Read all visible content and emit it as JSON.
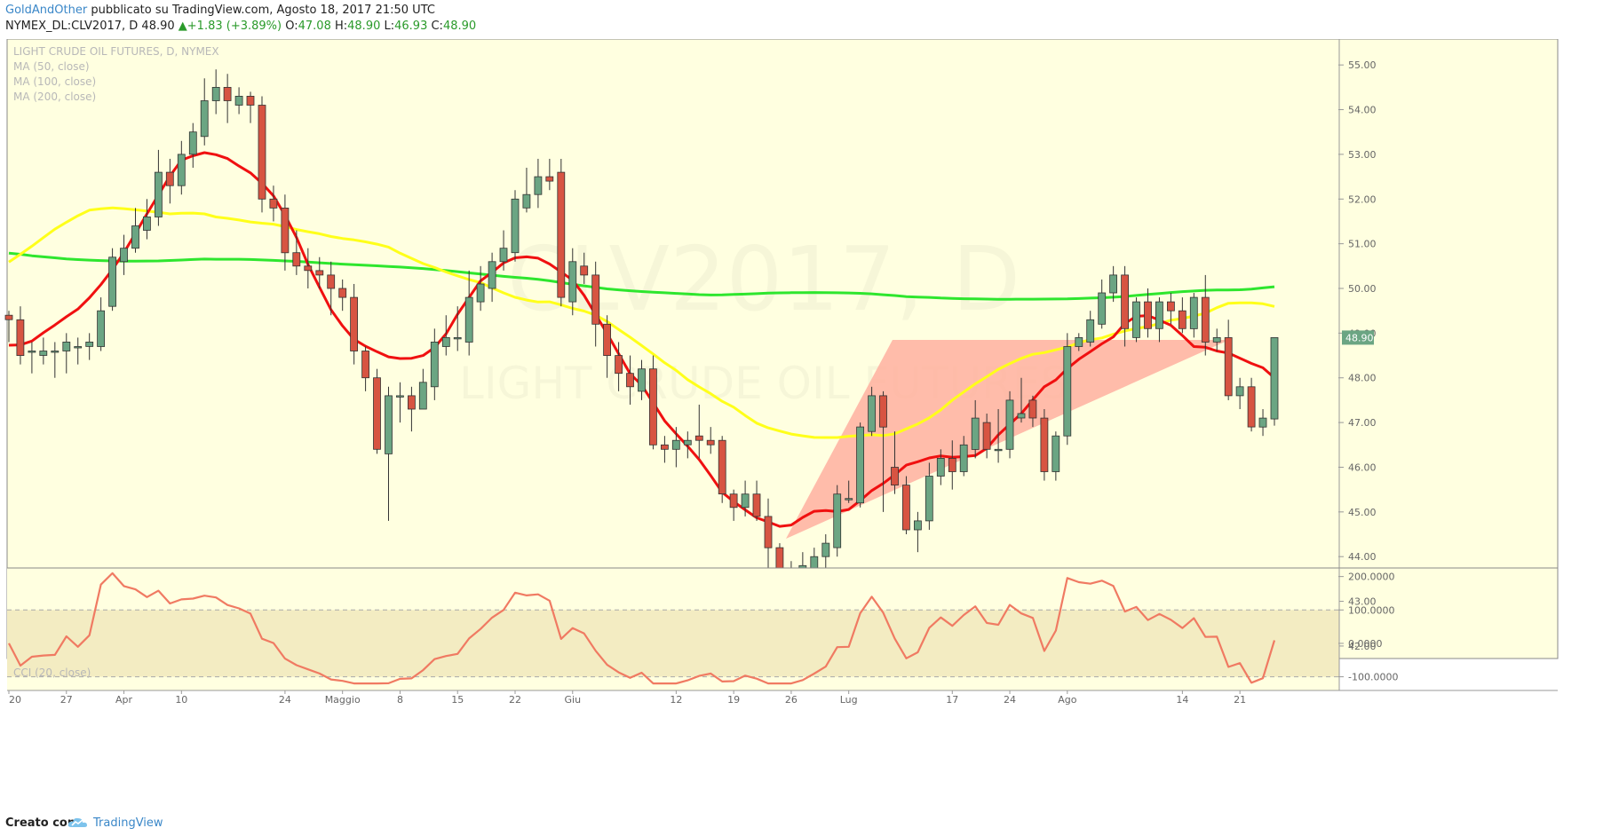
{
  "header": {
    "author": "GoldAndOther",
    "published": "pubblicato su TradingView.com, Agosto 18, 2017 21:50 UTC",
    "symbol": "NYMEX_DL:CLV2017, D",
    "last": "48.90",
    "change_arrow": "▲",
    "change": "+1.83 (+3.89%)",
    "o_label": "O:",
    "o": "47.08",
    "h_label": "H:",
    "h": "48.90",
    "l_label": "L:",
    "l": "46.93",
    "c_label": "C:",
    "c": "48.90"
  },
  "legend": {
    "title": "LIGHT CRUDE OIL FUTURES, D, NYMEX",
    "ma50": "MA (50, close)",
    "ma100": "MA (100, close)",
    "ma200": "MA (200, close)",
    "cci": "CCI (20, close)"
  },
  "watermark": {
    "line1": "CLV2017, D",
    "line2": "LIGHT CRUDE OIL FUTURES"
  },
  "footer": {
    "made_with": "Creato con",
    "brand": "TradingView"
  },
  "colors": {
    "plot_bg": "#ffffe0",
    "up": "#6ba583",
    "down": "#d75442",
    "ma50": "#f01010",
    "ma100": "#ffff1a",
    "ma200": "#2ee62e",
    "cci": "#f07a62",
    "triangle": "#ffb0a0",
    "cci_band": "#f3ecc2"
  },
  "chart_data": [
    {
      "type": "candlestick",
      "title": "LIGHT CRUDE OIL FUTURES, D, NYMEX",
      "x_tick_labels": [
        "20",
        "27",
        "Apr",
        "10",
        "24",
        "Maggio",
        "8",
        "15",
        "22",
        "Giu",
        "12",
        "19",
        "26",
        "Lug",
        "17",
        "24",
        "Ago",
        "14",
        "21"
      ],
      "y_tick_labels": [
        "42.00",
        "43.00",
        "44.00",
        "45.00",
        "46.00",
        "47.00",
        "48.00",
        "49.00",
        "50.00",
        "51.00",
        "52.00",
        "53.00",
        "54.00",
        "55.00"
      ],
      "ylim": [
        41.8,
        55.5
      ],
      "last_price_label": "48.90",
      "candles": [
        [
          49.4,
          49.3,
          49.5,
          48.8
        ],
        [
          49.3,
          48.5,
          49.6,
          48.3
        ],
        [
          48.6,
          48.6,
          48.8,
          48.1
        ],
        [
          48.5,
          48.6,
          48.9,
          48.3
        ],
        [
          48.6,
          48.6,
          48.8,
          48.0
        ],
        [
          48.6,
          48.8,
          49.0,
          48.1
        ],
        [
          48.7,
          48.7,
          48.9,
          48.3
        ],
        [
          48.7,
          48.8,
          49.0,
          48.4
        ],
        [
          48.7,
          49.5,
          49.8,
          48.6
        ],
        [
          49.6,
          50.7,
          50.9,
          49.5
        ],
        [
          50.6,
          50.9,
          51.2,
          50.3
        ],
        [
          50.9,
          51.4,
          51.8,
          50.8
        ],
        [
          51.3,
          51.6,
          52.0,
          51.1
        ],
        [
          51.6,
          52.6,
          53.1,
          51.4
        ],
        [
          52.6,
          52.3,
          52.9,
          51.9
        ],
        [
          52.3,
          53.0,
          53.3,
          52.1
        ],
        [
          53.0,
          53.5,
          53.7,
          52.7
        ],
        [
          53.4,
          54.2,
          54.7,
          53.2
        ],
        [
          54.2,
          54.5,
          54.9,
          53.9
        ],
        [
          54.5,
          54.2,
          54.8,
          53.7
        ],
        [
          54.1,
          54.3,
          54.5,
          53.9
        ],
        [
          54.3,
          54.1,
          54.4,
          53.7
        ],
        [
          54.1,
          52.0,
          54.3,
          51.7
        ],
        [
          52.0,
          51.8,
          52.3,
          51.5
        ],
        [
          51.8,
          50.8,
          52.1,
          50.4
        ],
        [
          50.8,
          50.5,
          51.3,
          50.3
        ],
        [
          50.5,
          50.4,
          50.9,
          50.0
        ],
        [
          50.4,
          50.3,
          50.7,
          50.0
        ],
        [
          50.3,
          50.0,
          50.6,
          49.4
        ],
        [
          50.0,
          49.8,
          50.2,
          49.5
        ],
        [
          49.8,
          48.6,
          50.1,
          48.3
        ],
        [
          48.6,
          48.0,
          48.7,
          47.7
        ],
        [
          48.0,
          46.4,
          48.2,
          46.3
        ],
        [
          46.3,
          47.6,
          47.8,
          44.8
        ],
        [
          47.6,
          47.6,
          47.9,
          47.0
        ],
        [
          47.6,
          47.3,
          47.8,
          46.8
        ],
        [
          47.3,
          47.9,
          48.2,
          47.3
        ],
        [
          47.8,
          48.8,
          49.1,
          47.5
        ],
        [
          48.7,
          48.9,
          49.4,
          48.5
        ],
        [
          48.9,
          48.9,
          49.6,
          48.6
        ],
        [
          48.8,
          49.8,
          50.4,
          48.5
        ],
        [
          49.7,
          50.1,
          50.5,
          49.5
        ],
        [
          50.0,
          50.6,
          50.8,
          49.7
        ],
        [
          50.6,
          50.9,
          51.3,
          50.4
        ],
        [
          50.8,
          52.0,
          52.2,
          50.6
        ],
        [
          51.8,
          52.1,
          52.7,
          51.7
        ],
        [
          52.1,
          52.5,
          52.9,
          51.8
        ],
        [
          52.5,
          52.4,
          52.9,
          52.2
        ],
        [
          52.6,
          49.8,
          52.9,
          49.6
        ],
        [
          49.7,
          50.6,
          50.9,
          49.4
        ],
        [
          50.5,
          50.3,
          50.8,
          50.1
        ],
        [
          50.3,
          49.2,
          50.6,
          48.7
        ],
        [
          49.2,
          48.5,
          49.4,
          48.0
        ],
        [
          48.5,
          48.1,
          48.8,
          47.7
        ],
        [
          48.1,
          47.8,
          48.5,
          47.4
        ],
        [
          47.7,
          48.2,
          48.4,
          47.5
        ],
        [
          48.2,
          46.5,
          48.5,
          46.4
        ],
        [
          46.5,
          46.4,
          46.7,
          46.1
        ],
        [
          46.4,
          46.6,
          46.9,
          46.0
        ],
        [
          46.5,
          46.6,
          46.8,
          46.2
        ],
        [
          46.7,
          46.6,
          47.4,
          46.2
        ],
        [
          46.6,
          46.5,
          46.9,
          46.3
        ],
        [
          46.6,
          45.4,
          46.7,
          45.2
        ],
        [
          45.4,
          45.1,
          45.5,
          44.8
        ],
        [
          45.1,
          45.4,
          45.7,
          44.9
        ],
        [
          45.4,
          44.9,
          45.7,
          44.8
        ],
        [
          44.9,
          44.2,
          45.3,
          43.6
        ],
        [
          44.2,
          43.2,
          44.3,
          42.9
        ],
        [
          43.1,
          43.3,
          43.9,
          42.7
        ],
        [
          43.4,
          43.8,
          44.1,
          43.1
        ],
        [
          43.6,
          44.0,
          44.2,
          43.4
        ],
        [
          44.0,
          44.3,
          44.5,
          43.7
        ],
        [
          44.2,
          45.4,
          45.6,
          44.0
        ],
        [
          45.3,
          45.3,
          45.7,
          45.2
        ],
        [
          45.2,
          46.9,
          47.0,
          45.1
        ],
        [
          46.8,
          47.6,
          47.8,
          46.7
        ],
        [
          47.6,
          46.9,
          47.7,
          45.0
        ],
        [
          46.0,
          45.6,
          46.8,
          45.4
        ],
        [
          45.6,
          44.6,
          45.8,
          44.5
        ],
        [
          44.6,
          44.8,
          45.0,
          44.1
        ],
        [
          44.8,
          45.8,
          46.1,
          44.6
        ],
        [
          45.8,
          46.2,
          46.4,
          45.6
        ],
        [
          46.2,
          45.9,
          46.6,
          45.5
        ],
        [
          45.9,
          46.5,
          46.7,
          45.8
        ],
        [
          46.4,
          47.1,
          47.5,
          46.2
        ],
        [
          47.0,
          46.4,
          47.2,
          46.2
        ],
        [
          46.4,
          46.4,
          47.3,
          46.1
        ],
        [
          46.4,
          47.5,
          47.7,
          46.2
        ],
        [
          47.1,
          47.2,
          48.0,
          47.0
        ],
        [
          47.5,
          47.1,
          47.6,
          46.9
        ],
        [
          47.1,
          45.9,
          47.3,
          45.7
        ],
        [
          45.9,
          46.7,
          46.8,
          45.7
        ],
        [
          46.7,
          48.7,
          49.0,
          46.5
        ],
        [
          48.7,
          48.9,
          49.0,
          48.6
        ],
        [
          48.8,
          49.3,
          49.5,
          48.7
        ],
        [
          49.2,
          49.9,
          50.2,
          49.1
        ],
        [
          49.9,
          50.3,
          50.5,
          49.7
        ],
        [
          50.3,
          49.1,
          50.5,
          48.7
        ],
        [
          48.9,
          49.7,
          49.8,
          48.8
        ],
        [
          49.7,
          49.1,
          50.0,
          48.9
        ],
        [
          49.1,
          49.7,
          49.8,
          48.8
        ],
        [
          49.7,
          49.5,
          49.9,
          49.2
        ],
        [
          49.5,
          49.1,
          49.8,
          49.0
        ],
        [
          49.1,
          49.8,
          49.9,
          48.9
        ],
        [
          49.8,
          48.8,
          50.3,
          48.5
        ],
        [
          48.8,
          48.9,
          49.1,
          48.6
        ],
        [
          48.9,
          47.6,
          49.3,
          47.5
        ],
        [
          47.6,
          47.8,
          48.0,
          47.3
        ],
        [
          47.8,
          46.9,
          48.0,
          46.8
        ],
        [
          46.9,
          47.1,
          47.3,
          46.7
        ],
        [
          47.08,
          48.9,
          48.9,
          46.93
        ]
      ]
    },
    {
      "type": "line",
      "title": "CCI (20, close)",
      "y_tick_labels": [
        "200.0000",
        "100.0000",
        "0.0000",
        "-100.0000"
      ],
      "ylim": [
        -125,
        215
      ],
      "bands": [
        100,
        -100
      ]
    }
  ]
}
